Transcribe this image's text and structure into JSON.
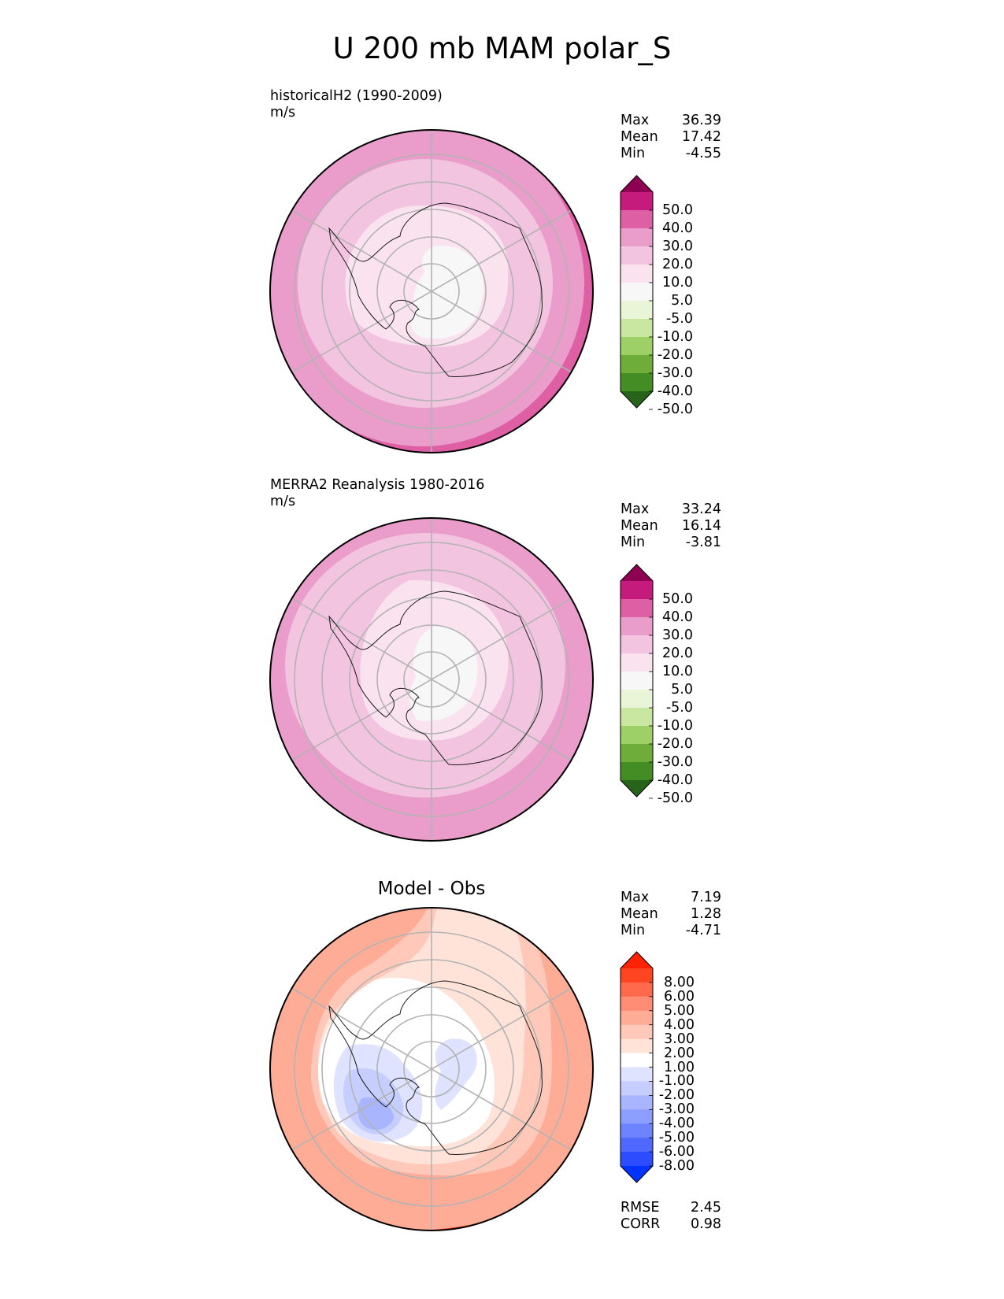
{
  "figure": {
    "title": "U 200 mb MAM polar_S"
  },
  "panels": [
    {
      "title_line1": "historicalH2 (1990-2009)",
      "title_line2": "m/s",
      "stats": [
        {
          "label": "Max",
          "value": "36.39"
        },
        {
          "label": "Mean",
          "value": "17.42"
        },
        {
          "label": "Min",
          "value": "-4.55"
        }
      ],
      "colorbar_labels": [
        "50.0",
        "40.0",
        "30.0",
        "20.0",
        "10.0",
        "5.0",
        "-5.0",
        "-10.0",
        "-20.0",
        "-30.0",
        "-40.0",
        "-50.0"
      ]
    },
    {
      "title_line1": "MERRA2 Reanalysis 1980-2016",
      "title_line2": "m/s",
      "stats": [
        {
          "label": "Max",
          "value": "33.24"
        },
        {
          "label": "Mean",
          "value": "16.14"
        },
        {
          "label": "Min",
          "value": "-3.81"
        }
      ],
      "colorbar_labels": [
        "50.0",
        "40.0",
        "30.0",
        "20.0",
        "10.0",
        "5.0",
        "-5.0",
        "-10.0",
        "-20.0",
        "-30.0",
        "-40.0",
        "-50.0"
      ]
    },
    {
      "title": "Model - Obs",
      "stats": [
        {
          "label": "Max",
          "value": "7.19"
        },
        {
          "label": "Mean",
          "value": "1.28"
        },
        {
          "label": "Min",
          "value": "-4.71"
        }
      ],
      "colorbar_labels": [
        "8.00",
        "6.00",
        "5.00",
        "4.00",
        "3.00",
        "2.00",
        "1.00",
        "-1.00",
        "-2.00",
        "-3.00",
        "-4.00",
        "-5.00",
        "-6.00",
        "-8.00"
      ],
      "metrics": [
        {
          "label": "RMSE",
          "value": "2.45"
        },
        {
          "label": "CORR",
          "value": "0.98"
        }
      ]
    }
  ],
  "colormaps": {
    "pink_green": [
      "#8e0152",
      "#c51b7d",
      "#de5fa4",
      "#ea9ccb",
      "#f3c4e0",
      "#fbe2ef",
      "#f7f7f7",
      "#e9f5d6",
      "#c9e7a0",
      "#9dd067",
      "#6fad3a",
      "#448c24",
      "#276419"
    ],
    "red_blue": [
      "#ff2200",
      "#ff4422",
      "#ff6a4d",
      "#ff8c74",
      "#ffac96",
      "#ffc8b8",
      "#ffe2d8",
      "#ffffff",
      "#dfe3ff",
      "#c6ceff",
      "#a9b6ff",
      "#8c9eff",
      "#6d83ff",
      "#4f68ff",
      "#2e4cff",
      "#0033ff"
    ]
  }
}
